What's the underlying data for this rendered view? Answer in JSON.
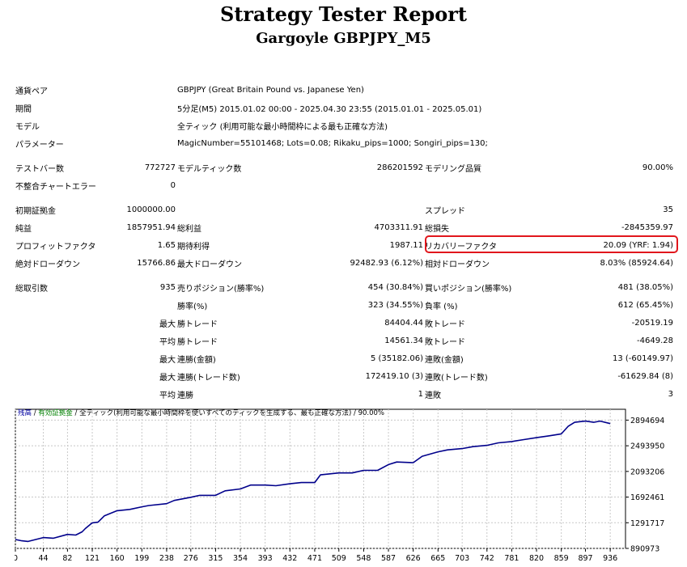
{
  "header": {
    "title": "Strategy Tester Report",
    "subtitle": "Gargoyle GBPJPY_M5"
  },
  "info": [
    {
      "label": "通貨ペア",
      "value": "GBPJPY (Great Britain Pound vs. Japanese Yen)"
    },
    {
      "label": "期間",
      "value": "5分足(M5) 2015.01.02 00:00 - 2025.04.30 23:55 (2015.01.01 - 2025.05.01)"
    },
    {
      "label": "モデル",
      "value": "全ティック (利用可能な最小時間枠による最も正確な方法)"
    },
    {
      "label": "パラメーター",
      "value": "MagicNumber=55101468; Lots=0.08; Rikaku_pips=1000; Songiri_pips=130;"
    }
  ],
  "stats": {
    "bars_label": "テストバー数",
    "bars_value": "772727",
    "ticks_label": "モデルティック数",
    "ticks_value": "286201592",
    "quality_label": "モデリング品質",
    "quality_value": "90.00%",
    "mismatch_label": "不整合チャートエラー",
    "mismatch_value": "0",
    "deposit_label": "初期証拠金",
    "deposit_value": "1000000.00",
    "spread_label": "スプレッド",
    "spread_value": "35",
    "net_label": "純益",
    "net_value": "1857951.94",
    "gross_profit_label": "総利益",
    "gross_profit_value": "4703311.91",
    "gross_loss_label": "総損失",
    "gross_loss_value": "-2845359.97",
    "pf_label": "プロフィットファクタ",
    "pf_value": "1.65",
    "expected_label": "期待利得",
    "expected_value": "1987.11",
    "recovery_label": "リカバリーファクタ",
    "recovery_value": "20.09 (YRF: 1.94)",
    "abs_dd_label": "絶対ドローダウン",
    "abs_dd_value": "15766.86",
    "max_dd_label": "最大ドローダウン",
    "max_dd_value": "92482.93 (6.12%)",
    "rel_dd_label": "相対ドローダウン",
    "rel_dd_value": "8.03% (85924.64)",
    "trades_label": "総取引数",
    "trades_value": "935",
    "short_label": "売りポジション(勝率%)",
    "short_value": "454 (30.84%)",
    "long_label": "買いポジション(勝率%)",
    "long_value": "481 (38.05%)",
    "win_pct_label": "勝率(%)",
    "win_pct_value": "323 (34.55%)",
    "loss_pct_label": "負率 (%)",
    "loss_pct_value": "612 (65.45%)",
    "max_word": "最大",
    "avg_word": "平均",
    "max_win_label": "勝トレード",
    "max_win_value": "84404.44",
    "max_loss_label": "敗トレード",
    "max_loss_value": "-20519.19",
    "avg_win_label": "勝トレード",
    "avg_win_value": "14561.34",
    "avg_loss_label": "敗トレード",
    "avg_loss_value": "-4649.28",
    "cons_win_amt_label": "連勝(金額)",
    "cons_win_amt_value": "5 (35182.06)",
    "cons_loss_amt_label": "連敗(金額)",
    "cons_loss_amt_value": "13 (-60149.97)",
    "cons_win_cnt_label": "連勝(トレード数)",
    "cons_win_cnt_value": "172419.10 (3)",
    "cons_loss_cnt_label": "連敗(トレード数)",
    "cons_loss_cnt_value": "-61629.84 (8)",
    "avg_cons_win_label": "連勝",
    "avg_cons_win_value": "1",
    "avg_cons_loss_label": "連敗",
    "avg_cons_loss_value": "3"
  },
  "chart_legend": {
    "balance": "残高",
    "sep1": " / ",
    "equity": "有効証拠金",
    "sep2": " / ",
    "model": "全ティック(利用可能な最小時間枠を使いすべてのティックを生成する、最も正確な方法)",
    "sep3": " / ",
    "quality": "90.00%"
  },
  "colors": {
    "balance_line": "#00008b",
    "grid": "#c8c8c8",
    "highlight_box": "#e1161c",
    "legend_balance": "#0000a0",
    "legend_equity": "#008000"
  },
  "chart_data": {
    "type": "line",
    "xlabel": "",
    "ylabel": "",
    "x_ticks": [
      "0",
      "44",
      "82",
      "121",
      "160",
      "199",
      "238",
      "276",
      "315",
      "354",
      "393",
      "432",
      "471",
      "509",
      "548",
      "587",
      "626",
      "665",
      "703",
      "742",
      "781",
      "820",
      "859",
      "897",
      "936"
    ],
    "y_ticks": [
      "2894694",
      "2493950",
      "2093206",
      "1692461",
      "1291717",
      "890973"
    ],
    "xlim": [
      0,
      960
    ],
    "ylim": [
      890973,
      3064000
    ],
    "grid": true,
    "series": [
      {
        "x": [
          0,
          10,
          20,
          44,
          60,
          82,
          95,
          105,
          110,
          121,
          130,
          140,
          160,
          180,
          199,
          210,
          238,
          250,
          276,
          290,
          315,
          330,
          354,
          370,
          393,
          410,
          432,
          450,
          471,
          480,
          509,
          530,
          548,
          570,
          587,
          600,
          626,
          640,
          665,
          680,
          703,
          720,
          742,
          760,
          781,
          800,
          820,
          840,
          859,
          870,
          880,
          897,
          910,
          920,
          936
        ],
        "y": [
          1030000,
          1010000,
          1000000,
          1060000,
          1050000,
          1110000,
          1100000,
          1150000,
          1200000,
          1290000,
          1300000,
          1400000,
          1480000,
          1500000,
          1540000,
          1560000,
          1590000,
          1640000,
          1690000,
          1720000,
          1720000,
          1790000,
          1820000,
          1880000,
          1880000,
          1870000,
          1900000,
          1920000,
          1920000,
          2040000,
          2070000,
          2070000,
          2110000,
          2110000,
          2200000,
          2240000,
          2230000,
          2330000,
          2400000,
          2430000,
          2450000,
          2480000,
          2500000,
          2540000,
          2560000,
          2590000,
          2620000,
          2650000,
          2680000,
          2800000,
          2860000,
          2880000,
          2860000,
          2880000,
          2840000
        ]
      }
    ]
  }
}
